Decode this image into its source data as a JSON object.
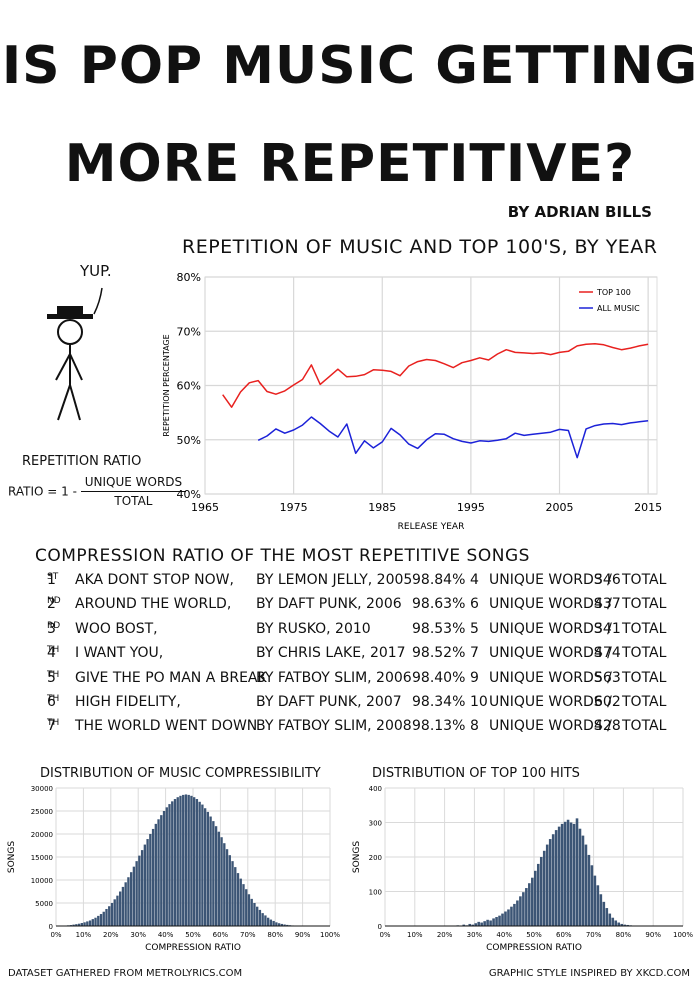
{
  "header": {
    "title_line1": "IS POP MUSIC GETTING",
    "title_line2": "MORE REPETITIVE?",
    "byline": "BY ADRIAN BILLS"
  },
  "figure": {
    "speech": "YUP.",
    "formula_title": "REPETITION RATIO",
    "formula_lhs": "RATIO = 1 -",
    "formula_num": "UNIQUE WORDS",
    "formula_den": "TOTAL"
  },
  "table": {
    "title": "COMPRESSION RATIO OF THE MOST REPETITIVE SONGS",
    "rows": [
      {
        "rank": "1",
        "suffix": "ST",
        "song": "AKA DONT STOP NOW,",
        "artist": "BY LEMON JELLY, 2005",
        "pct": "98.84%",
        "unique": "4",
        "u_label": "UNIQUE WORDS /",
        "total": "346",
        "t_label": "TOTAL"
      },
      {
        "rank": "2",
        "suffix": "ND",
        "song": "AROUND THE WORLD,",
        "artist": "BY DAFT PUNK, 2006",
        "pct": "98.63%",
        "unique": "6",
        "u_label": "UNIQUE WORDS /",
        "total": "437",
        "t_label": "TOTAL"
      },
      {
        "rank": "3",
        "suffix": "RD",
        "song": "WOO BOST,",
        "artist": "BY RUSKO, 2010",
        "pct": "98.53%",
        "unique": "5",
        "u_label": "UNIQUE WORDS /",
        "total": "341",
        "t_label": "TOTAL"
      },
      {
        "rank": "4",
        "suffix": "TH",
        "song": "I WANT YOU,",
        "artist": "BY CHRIS LAKE, 2017",
        "pct": "98.52%",
        "unique": "7",
        "u_label": "UNIQUE WORDS /",
        "total": "474",
        "t_label": "TOTAL"
      },
      {
        "rank": "5",
        "suffix": "TH",
        "song": "GIVE THE PO MAN A BREAK",
        "artist": "BY FATBOY SLIM, 2006",
        "pct": "98.40%",
        "unique": "9",
        "u_label": "UNIQUE WORDS /",
        "total": "563",
        "t_label": "TOTAL"
      },
      {
        "rank": "6",
        "suffix": "TH",
        "song": "HIGH FIDELITY,",
        "artist": "BY DAFT PUNK, 2007",
        "pct": "98.34%",
        "unique": "10",
        "u_label": "UNIQUE WORDS /",
        "total": "602",
        "t_label": "TOTAL"
      },
      {
        "rank": "7",
        "suffix": "TH",
        "song": "THE WORLD WENT DOWN",
        "artist": "BY FATBOY SLIM, 2008",
        "pct": "98.13%",
        "unique": "8",
        "u_label": "UNIQUE WORDS /",
        "total": "428",
        "t_label": "TOTAL"
      }
    ]
  },
  "footer": {
    "left": "DATASET GATHERED FROM METROLYRICS.COM",
    "right": "GRAPHIC STYLE INSPIRED BY XKCD.COM"
  },
  "chart_data": [
    {
      "type": "line",
      "title": "REPETITION OF MUSIC AND TOP 100'S, BY YEAR",
      "xlabel": "RELEASE YEAR",
      "ylabel": "REPETITION PERCENTAGE",
      "xlim": [
        1965,
        2016
      ],
      "ylim": [
        40,
        80
      ],
      "xticks": [
        "1965",
        "1975",
        "1985",
        "1995",
        "2005",
        "2015"
      ],
      "xtick_values": [
        1965,
        1975,
        1985,
        1995,
        2005,
        2015
      ],
      "yticks": [
        "40%",
        "50%",
        "60%",
        "70%",
        "80%"
      ],
      "ytick_values": [
        40,
        50,
        60,
        70,
        80
      ],
      "grid": true,
      "legend": "top-right",
      "series": [
        {
          "name": "TOP 100",
          "color": "#e8211f",
          "x": [
            1967,
            1968,
            1969,
            1970,
            1971,
            1972,
            1973,
            1974,
            1975,
            1976,
            1977,
            1978,
            1979,
            1980,
            1981,
            1982,
            1983,
            1984,
            1985,
            1986,
            1987,
            1988,
            1989,
            1990,
            1991,
            1992,
            1993,
            1994,
            1995,
            1996,
            1997,
            1998,
            1999,
            2000,
            2001,
            2002,
            2003,
            2004,
            2005,
            2006,
            2007,
            2008,
            2009,
            2010,
            2011,
            2012,
            2013,
            2014,
            2015
          ],
          "y": [
            58.3,
            56.0,
            58.8,
            60.5,
            60.9,
            58.9,
            58.4,
            59.0,
            60.1,
            61.1,
            63.8,
            60.2,
            61.6,
            63.0,
            61.6,
            61.7,
            62.0,
            62.9,
            62.8,
            62.6,
            61.8,
            63.6,
            64.4,
            64.8,
            64.6,
            64.0,
            63.3,
            64.2,
            64.6,
            65.1,
            64.7,
            65.8,
            66.6,
            66.1,
            66.0,
            65.9,
            66.0,
            65.7,
            66.1,
            66.3,
            67.3,
            67.6,
            67.7,
            67.5,
            67.0,
            66.6,
            66.9,
            67.3,
            67.6
          ]
        },
        {
          "name": "ALL MUSIC",
          "color": "#1c22d8",
          "x": [
            1971,
            1972,
            1973,
            1974,
            1975,
            1976,
            1977,
            1978,
            1979,
            1980,
            1981,
            1982,
            1983,
            1984,
            1985,
            1986,
            1987,
            1988,
            1989,
            1990,
            1991,
            1992,
            1993,
            1994,
            1995,
            1996,
            1997,
            1998,
            1999,
            2000,
            2001,
            2002,
            2003,
            2004,
            2005,
            2006,
            2007,
            2008,
            2009,
            2010,
            2011,
            2012,
            2013,
            2014,
            2015
          ],
          "y": [
            49.9,
            50.7,
            52.0,
            51.2,
            51.8,
            52.7,
            54.2,
            53.0,
            51.6,
            50.5,
            52.9,
            47.5,
            49.8,
            48.5,
            49.6,
            52.1,
            50.9,
            49.2,
            48.4,
            50.0,
            51.1,
            51.0,
            50.2,
            49.7,
            49.4,
            49.8,
            49.7,
            49.9,
            50.2,
            51.2,
            50.8,
            51.0,
            51.2,
            51.4,
            51.9,
            51.7,
            46.7,
            52.0,
            52.6,
            52.9,
            53.0,
            52.8,
            53.1,
            53.3,
            53.5
          ]
        }
      ]
    },
    {
      "type": "bar",
      "title": "DISTRIBUTION OF MUSIC COMPRESSIBILITY",
      "xlabel": "COMPRESSION RATIO",
      "ylabel": "SONGS",
      "xlim": [
        0,
        100
      ],
      "ylim": [
        0,
        30000
      ],
      "xticks": [
        "0%",
        "10%",
        "20%",
        "30%",
        "40%",
        "50%",
        "60%",
        "70%",
        "80%",
        "90%",
        "100%"
      ],
      "yticks": [
        "0",
        "5000",
        "10000",
        "15000",
        "20000",
        "25000",
        "30000"
      ],
      "ytick_values": [
        0,
        5000,
        10000,
        15000,
        20000,
        25000,
        30000
      ],
      "color": "#3c5575",
      "bin_start": 0,
      "bin_width": 1,
      "values": [
        50,
        60,
        80,
        100,
        150,
        200,
        300,
        400,
        500,
        650,
        800,
        1000,
        1200,
        1500,
        1800,
        2200,
        2600,
        3100,
        3700,
        4300,
        5000,
        5800,
        6600,
        7500,
        8500,
        9500,
        10600,
        11700,
        12900,
        14100,
        15300,
        16500,
        17700,
        18900,
        20000,
        21100,
        22200,
        23200,
        24100,
        25000,
        25800,
        26500,
        27100,
        27600,
        28000,
        28300,
        28500,
        28600,
        28500,
        28300,
        28000,
        27600,
        27000,
        26400,
        25600,
        24800,
        23800,
        22800,
        21700,
        20500,
        19300,
        18000,
        16700,
        15400,
        14100,
        12800,
        11500,
        10300,
        9100,
        8000,
        6900,
        5900,
        5000,
        4200,
        3500,
        2800,
        2300,
        1800,
        1400,
        1100,
        800,
        600,
        450,
        330,
        240,
        170,
        120,
        80,
        60,
        40,
        25,
        15,
        10,
        5,
        3,
        2,
        1,
        0,
        0,
        0
      ]
    },
    {
      "type": "bar",
      "title": "DISTRIBUTION OF TOP 100 HITS",
      "xlabel": "COMPRESSION RATIO",
      "ylabel": "SONGS",
      "xlim": [
        0,
        100
      ],
      "ylim": [
        0,
        400
      ],
      "xticks": [
        "0%",
        "10%",
        "20%",
        "30%",
        "40%",
        "50%",
        "60%",
        "70%",
        "80%",
        "90%",
        "100%"
      ],
      "yticks": [
        "0",
        "100",
        "200",
        "300",
        "400"
      ],
      "ytick_values": [
        0,
        100,
        200,
        300,
        400
      ],
      "color": "#3c5575",
      "bin_start": 0,
      "bin_width": 1,
      "values": [
        0,
        0,
        0,
        0,
        0,
        0,
        0,
        0,
        0,
        0,
        0,
        0,
        0,
        0,
        0,
        0,
        0,
        0,
        0,
        0,
        0,
        0,
        1,
        0,
        2,
        0,
        4,
        2,
        6,
        4,
        8,
        12,
        10,
        14,
        18,
        16,
        22,
        26,
        30,
        36,
        42,
        48,
        56,
        64,
        74,
        86,
        98,
        110,
        124,
        140,
        160,
        180,
        200,
        218,
        236,
        252,
        266,
        278,
        288,
        296,
        302,
        308,
        300,
        296,
        312,
        282,
        262,
        236,
        206,
        176,
        146,
        118,
        92,
        70,
        52,
        36,
        24,
        16,
        10,
        6,
        4,
        3,
        2,
        1,
        0,
        0,
        0,
        0,
        0,
        0,
        0,
        0,
        0,
        0,
        0,
        0,
        0,
        0,
        0,
        0
      ]
    }
  ]
}
